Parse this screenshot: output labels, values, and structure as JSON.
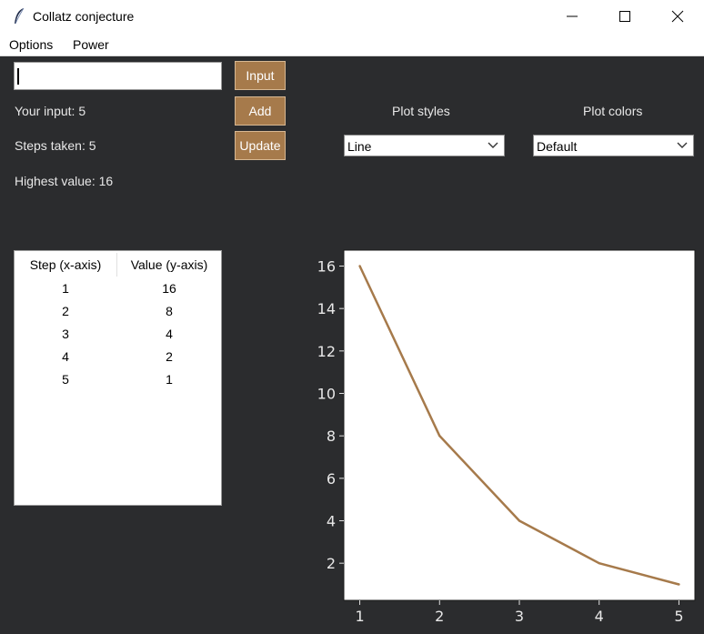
{
  "window": {
    "title": "Collatz conjecture",
    "icon": "feather-icon"
  },
  "menu": {
    "items": [
      "Options",
      "Power"
    ]
  },
  "input": {
    "value": "",
    "placeholder": ""
  },
  "buttons": {
    "input": "Input",
    "add": "Add",
    "update": "Update"
  },
  "info": {
    "your_input": "Your input: 5",
    "steps_taken": "Steps taken: 5",
    "highest_value": "Highest value: 16"
  },
  "plot_styles": {
    "label": "Plot styles",
    "selected": "Line"
  },
  "plot_colors": {
    "label": "Plot colors",
    "selected": "Default"
  },
  "table": {
    "headers": [
      "Step (x-axis)",
      "Value (y-axis)"
    ],
    "rows": [
      {
        "step": "1",
        "value": "16"
      },
      {
        "step": "2",
        "value": "8"
      },
      {
        "step": "3",
        "value": "4"
      },
      {
        "step": "4",
        "value": "2"
      },
      {
        "step": "5",
        "value": "1"
      }
    ]
  },
  "colors": {
    "background": "#2b2c2e",
    "accent": "#a67a4b",
    "line": "#a67a4b"
  },
  "chart_data": {
    "type": "line",
    "x": [
      1,
      2,
      3,
      4,
      5
    ],
    "series": [
      {
        "values": [
          16,
          8,
          4,
          2,
          1
        ]
      }
    ],
    "xticks": [
      1,
      2,
      3,
      4,
      5
    ],
    "yticks": [
      2,
      4,
      6,
      8,
      10,
      12,
      14,
      16
    ],
    "xlim": [
      0.8,
      5.2
    ],
    "ylim": [
      0.25,
      16.75
    ],
    "title": "",
    "xlabel": "",
    "ylabel": "",
    "grid": false
  }
}
